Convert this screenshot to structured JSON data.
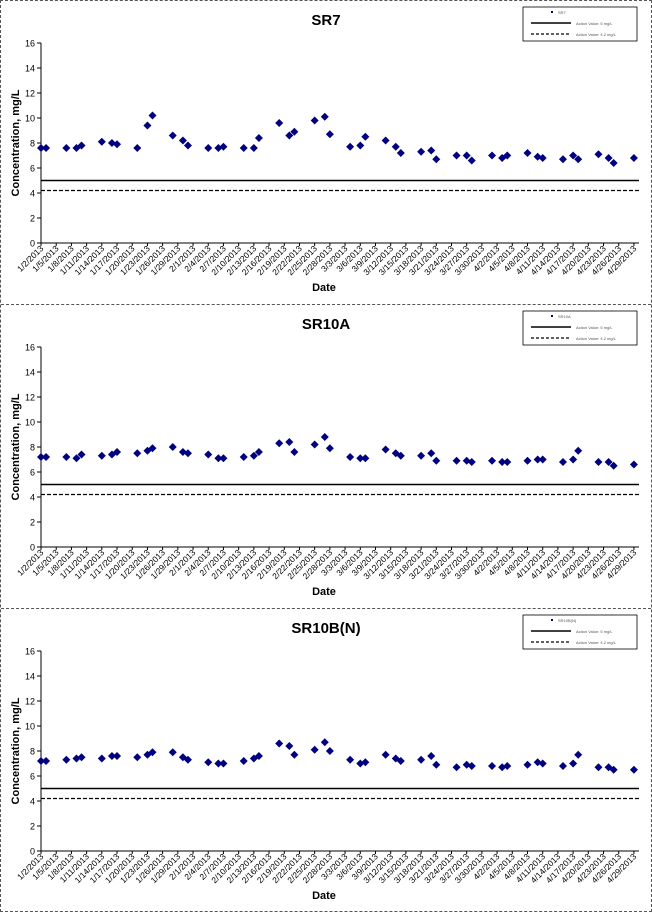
{
  "chart_data": [
    {
      "type": "scatter",
      "title": "SR7",
      "xlabel": "Date",
      "ylabel": "Concentration, mg/L",
      "ylim": [
        0,
        16
      ],
      "yticks": [
        0,
        2,
        4,
        6,
        8,
        10,
        12,
        14,
        16
      ],
      "xticks": [
        "1/2/2013",
        "1/5/2013",
        "1/8/2013",
        "1/11/2013",
        "1/14/2013",
        "1/17/2013",
        "1/20/2013",
        "1/23/2013",
        "1/26/2013",
        "1/29/2013",
        "2/1/2013",
        "2/4/2013",
        "2/7/2013",
        "2/10/2013",
        "2/13/2013",
        "2/16/2013",
        "2/19/2013",
        "2/22/2013",
        "2/25/2013",
        "2/28/2013",
        "3/3/2013",
        "3/6/2013",
        "3/9/2013",
        "3/12/2013",
        "3/15/2013",
        "3/18/2013",
        "3/21/2013",
        "3/24/2013",
        "3/27/2013",
        "3/30/2013",
        "4/2/2013",
        "4/5/2013",
        "4/8/2013",
        "4/11/2013",
        "4/14/2013",
        "4/17/2013",
        "4/20/2013",
        "4/23/2013",
        "4/26/2013",
        "4/29/2013"
      ],
      "grid": false,
      "legend": "top-right",
      "legend_entries": [
        "SR7",
        "Action Value: 5 mg/L",
        "Action Value: 4.2 mg/L"
      ],
      "series": [
        {
          "name": "SR7",
          "marker": "diamond",
          "color": "#000080",
          "x": [
            "1/2/2013",
            "1/3/2013",
            "1/7/2013",
            "1/9/2013",
            "1/10/2013",
            "1/14/2013",
            "1/16/2013",
            "1/17/2013",
            "1/21/2013",
            "1/23/2013",
            "1/24/2013",
            "1/28/2013",
            "1/30/2013",
            "1/31/2013",
            "2/4/2013",
            "2/6/2013",
            "2/7/2013",
            "2/11/2013",
            "2/13/2013",
            "2/14/2013",
            "2/18/2013",
            "2/20/2013",
            "2/21/2013",
            "2/25/2013",
            "2/27/2013",
            "2/28/2013",
            "3/4/2013",
            "3/6/2013",
            "3/7/2013",
            "3/11/2013",
            "3/13/2013",
            "3/14/2013",
            "3/18/2013",
            "3/20/2013",
            "3/21/2013",
            "3/25/2013",
            "3/27/2013",
            "3/28/2013",
            "4/1/2013",
            "4/3/2013",
            "4/4/2013",
            "4/8/2013",
            "4/10/2013",
            "4/11/2013",
            "4/15/2013",
            "4/17/2013",
            "4/18/2013",
            "4/22/2013",
            "4/24/2013",
            "4/25/2013",
            "4/29/2013"
          ],
          "values": [
            7.6,
            7.6,
            7.6,
            7.6,
            7.8,
            8.1,
            8.0,
            7.9,
            7.6,
            9.4,
            10.2,
            8.6,
            8.2,
            7.8,
            7.6,
            7.6,
            7.7,
            7.6,
            7.6,
            8.4,
            9.6,
            8.6,
            8.9,
            9.8,
            10.1,
            8.7,
            7.7,
            7.8,
            8.5,
            8.2,
            7.7,
            7.2,
            7.3,
            7.4,
            6.7,
            7.0,
            7.0,
            6.6,
            7.0,
            6.8,
            7.0,
            7.2,
            6.9,
            6.8,
            6.7,
            7.0,
            6.7,
            7.1,
            6.8,
            6.4,
            6.8
          ]
        },
        {
          "name": "Action Value: 5 mg/L",
          "style": "solid",
          "value": 5
        },
        {
          "name": "Action Value: 4.2 mg/L",
          "style": "dashed",
          "value": 4.2
        }
      ]
    },
    {
      "type": "scatter",
      "title": "SR10A",
      "xlabel": "Date",
      "ylabel": "Concentration, mg/L",
      "ylim": [
        0,
        16
      ],
      "yticks": [
        0,
        2,
        4,
        6,
        8,
        10,
        12,
        14,
        16
      ],
      "xticks": [
        "1/2/2013",
        "1/5/2013",
        "1/8/2013",
        "1/11/2013",
        "1/14/2013",
        "1/17/2013",
        "1/20/2013",
        "1/23/2013",
        "1/26/2013",
        "1/29/2013",
        "2/1/2013",
        "2/4/2013",
        "2/7/2013",
        "2/10/2013",
        "2/13/2013",
        "2/16/2013",
        "2/19/2013",
        "2/22/2013",
        "2/25/2013",
        "2/28/2013",
        "3/3/2013",
        "3/6/2013",
        "3/9/2013",
        "3/12/2013",
        "3/15/2013",
        "3/18/2013",
        "3/21/2013",
        "3/24/2013",
        "3/27/2013",
        "3/30/2013",
        "4/2/2013",
        "4/5/2013",
        "4/8/2013",
        "4/11/2013",
        "4/14/2013",
        "4/17/2013",
        "4/20/2013",
        "4/23/2013",
        "4/26/2013",
        "4/29/2013"
      ],
      "grid": false,
      "legend": "top-right",
      "legend_entries": [
        "SR10A",
        "Action Value: 5 mg/L",
        "Action Value: 4.2 mg/L"
      ],
      "series": [
        {
          "name": "SR10A",
          "marker": "diamond",
          "color": "#000080",
          "x": [
            "1/2/2013",
            "1/3/2013",
            "1/7/2013",
            "1/9/2013",
            "1/10/2013",
            "1/14/2013",
            "1/16/2013",
            "1/17/2013",
            "1/21/2013",
            "1/23/2013",
            "1/24/2013",
            "1/28/2013",
            "1/30/2013",
            "1/31/2013",
            "2/4/2013",
            "2/6/2013",
            "2/7/2013",
            "2/11/2013",
            "2/13/2013",
            "2/14/2013",
            "2/18/2013",
            "2/20/2013",
            "2/21/2013",
            "2/25/2013",
            "2/27/2013",
            "2/28/2013",
            "3/4/2013",
            "3/6/2013",
            "3/7/2013",
            "3/11/2013",
            "3/13/2013",
            "3/14/2013",
            "3/18/2013",
            "3/20/2013",
            "3/21/2013",
            "3/25/2013",
            "3/27/2013",
            "3/28/2013",
            "4/1/2013",
            "4/3/2013",
            "4/4/2013",
            "4/8/2013",
            "4/10/2013",
            "4/11/2013",
            "4/15/2013",
            "4/17/2013",
            "4/18/2013",
            "4/22/2013",
            "4/24/2013",
            "4/25/2013",
            "4/29/2013"
          ],
          "values": [
            7.2,
            7.2,
            7.2,
            7.1,
            7.4,
            7.3,
            7.4,
            7.6,
            7.5,
            7.7,
            7.9,
            8.0,
            7.6,
            7.5,
            7.4,
            7.1,
            7.1,
            7.2,
            7.3,
            7.6,
            8.3,
            8.4,
            7.6,
            8.2,
            8.8,
            7.9,
            7.2,
            7.1,
            7.1,
            7.8,
            7.5,
            7.3,
            7.3,
            7.5,
            6.9,
            6.9,
            6.9,
            6.8,
            6.9,
            6.8,
            6.8,
            6.9,
            7.0,
            7.0,
            6.8,
            7.0,
            7.7,
            6.8,
            6.8,
            6.5,
            6.6
          ]
        },
        {
          "name": "Action Value: 5 mg/L",
          "style": "solid",
          "value": 5
        },
        {
          "name": "Action Value: 4.2 mg/L",
          "style": "dashed",
          "value": 4.2
        }
      ]
    },
    {
      "type": "scatter",
      "title": "SR10B(N)",
      "xlabel": "Date",
      "ylabel": "Concentration, mg/L",
      "ylim": [
        0,
        16
      ],
      "yticks": [
        0,
        2,
        4,
        6,
        8,
        10,
        12,
        14,
        16
      ],
      "xticks": [
        "1/2/2013",
        "1/5/2013",
        "1/8/2013",
        "1/11/2013",
        "1/14/2013",
        "1/17/2013",
        "1/20/2013",
        "1/23/2013",
        "1/26/2013",
        "1/29/2013",
        "2/1/2013",
        "2/4/2013",
        "2/7/2013",
        "2/10/2013",
        "2/13/2013",
        "2/16/2013",
        "2/19/2013",
        "2/22/2013",
        "2/25/2013",
        "2/28/2013",
        "3/3/2013",
        "3/6/2013",
        "3/9/2013",
        "3/12/2013",
        "3/15/2013",
        "3/18/2013",
        "3/21/2013",
        "3/24/2013",
        "3/27/2013",
        "3/30/2013",
        "4/2/2013",
        "4/5/2013",
        "4/8/2013",
        "4/11/2013",
        "4/14/2013",
        "4/17/2013",
        "4/20/2013",
        "4/23/2013",
        "4/26/2013",
        "4/29/2013"
      ],
      "grid": false,
      "legend": "top-right",
      "legend_entries": [
        "SR10B(N)",
        "Action Value: 5 mg/L",
        "Action Value: 4.2 mg/L"
      ],
      "series": [
        {
          "name": "SR10B(N)",
          "marker": "diamond",
          "color": "#000080",
          "x": [
            "1/2/2013",
            "1/3/2013",
            "1/7/2013",
            "1/9/2013",
            "1/10/2013",
            "1/14/2013",
            "1/16/2013",
            "1/17/2013",
            "1/21/2013",
            "1/23/2013",
            "1/24/2013",
            "1/28/2013",
            "1/30/2013",
            "1/31/2013",
            "2/4/2013",
            "2/6/2013",
            "2/7/2013",
            "2/11/2013",
            "2/13/2013",
            "2/14/2013",
            "2/18/2013",
            "2/20/2013",
            "2/21/2013",
            "2/25/2013",
            "2/27/2013",
            "2/28/2013",
            "3/4/2013",
            "3/6/2013",
            "3/7/2013",
            "3/11/2013",
            "3/13/2013",
            "3/14/2013",
            "3/18/2013",
            "3/20/2013",
            "3/21/2013",
            "3/25/2013",
            "3/27/2013",
            "3/28/2013",
            "4/1/2013",
            "4/3/2013",
            "4/4/2013",
            "4/8/2013",
            "4/10/2013",
            "4/11/2013",
            "4/15/2013",
            "4/17/2013",
            "4/18/2013",
            "4/22/2013",
            "4/24/2013",
            "4/25/2013",
            "4/29/2013"
          ],
          "values": [
            7.2,
            7.2,
            7.3,
            7.4,
            7.5,
            7.4,
            7.6,
            7.6,
            7.5,
            7.7,
            7.9,
            7.9,
            7.5,
            7.3,
            7.1,
            7.0,
            7.0,
            7.2,
            7.4,
            7.6,
            8.6,
            8.4,
            7.7,
            8.1,
            8.7,
            8.0,
            7.3,
            7.0,
            7.1,
            7.7,
            7.4,
            7.2,
            7.3,
            7.6,
            6.9,
            6.7,
            6.9,
            6.8,
            6.8,
            6.7,
            6.8,
            6.9,
            7.1,
            7.0,
            6.8,
            7.0,
            7.7,
            6.7,
            6.7,
            6.5,
            6.5
          ]
        },
        {
          "name": "Action Value: 5 mg/L",
          "style": "solid",
          "value": 5
        },
        {
          "name": "Action Value: 4.2 mg/L",
          "style": "dashed",
          "value": 4.2
        }
      ]
    }
  ]
}
